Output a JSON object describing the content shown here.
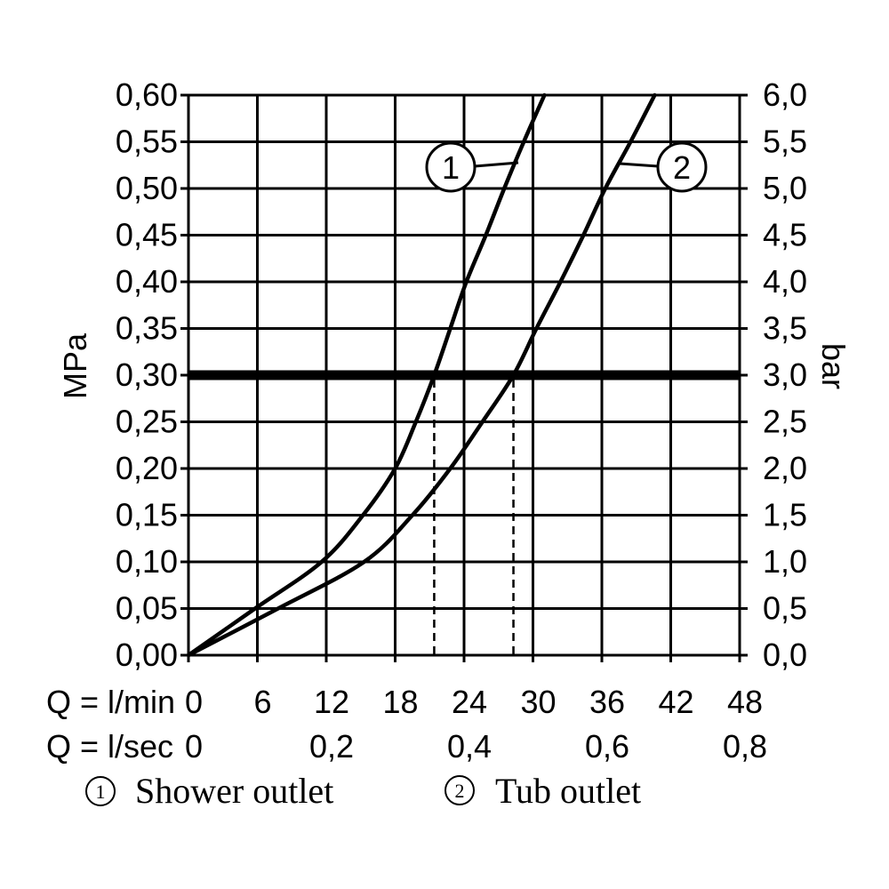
{
  "chart_data": {
    "type": "line",
    "x": {
      "label": "Q = l/min",
      "lim": [
        0,
        48
      ],
      "ticks": [
        0,
        6,
        12,
        18,
        24,
        30,
        36,
        42,
        48
      ],
      "tick_labels": [
        "0",
        "6",
        "12",
        "18",
        "24",
        "30",
        "36",
        "42",
        "48"
      ]
    },
    "x_secondary": {
      "label": "Q = l/sec",
      "lim": [
        0,
        0.8
      ],
      "ticks": [
        0,
        0.2,
        0.4,
        0.6,
        0.8
      ],
      "tick_labels": [
        "0",
        "0,2",
        "0,4",
        "0,6",
        "0,8"
      ]
    },
    "y_left": {
      "label": "MPa",
      "lim": [
        0,
        0.6
      ],
      "ticks": [
        0,
        0.05,
        0.1,
        0.15,
        0.2,
        0.25,
        0.3,
        0.35,
        0.4,
        0.45,
        0.5,
        0.55,
        0.6
      ],
      "tick_labels": [
        "0,00",
        "0,05",
        "0,10",
        "0,15",
        "0,20",
        "0,25",
        "0,30",
        "0,35",
        "0,40",
        "0,45",
        "0,50",
        "0,55",
        "0,60"
      ]
    },
    "y_right": {
      "label": "bar",
      "lim": [
        0,
        6
      ],
      "ticks": [
        0,
        0.5,
        1.0,
        1.5,
        2.0,
        2.5,
        3.0,
        3.5,
        4.0,
        4.5,
        5.0,
        5.5,
        6.0
      ],
      "tick_labels": [
        "0,0",
        "0,5",
        "1,0",
        "1,5",
        "2,0",
        "2,5",
        "3,0",
        "3,5",
        "4,0",
        "4,5",
        "5,0",
        "5,5",
        "6,0"
      ]
    },
    "grid": true,
    "legend_placement": "bottom",
    "reference_line": {
      "y": 0.3
    },
    "drop_lines": [
      {
        "x": 21.4,
        "y": 0.3
      },
      {
        "x": 28.3,
        "y": 0.3
      }
    ],
    "series": [
      {
        "name": "Shower outlet",
        "marker": "1",
        "x": [
          0,
          5.8,
          11.6,
          15.2,
          18.0,
          19.8,
          21.4,
          22.8,
          24.2,
          25.9,
          27.5,
          29.2,
          31.0
        ],
        "y": [
          0,
          0.05,
          0.1,
          0.15,
          0.2,
          0.25,
          0.3,
          0.35,
          0.4,
          0.45,
          0.5,
          0.55,
          0.6
        ]
      },
      {
        "name": "Tub outlet",
        "marker": "2",
        "x": [
          0,
          7.8,
          15.3,
          19.5,
          22.8,
          25.6,
          28.3,
          30.3,
          32.4,
          34.4,
          36.3,
          38.5,
          40.6
        ],
        "y": [
          0,
          0.05,
          0.1,
          0.15,
          0.2,
          0.25,
          0.3,
          0.35,
          0.4,
          0.45,
          0.5,
          0.55,
          0.6
        ]
      }
    ],
    "colors": {
      "ink": "#000000",
      "background": "#ffffff"
    }
  }
}
